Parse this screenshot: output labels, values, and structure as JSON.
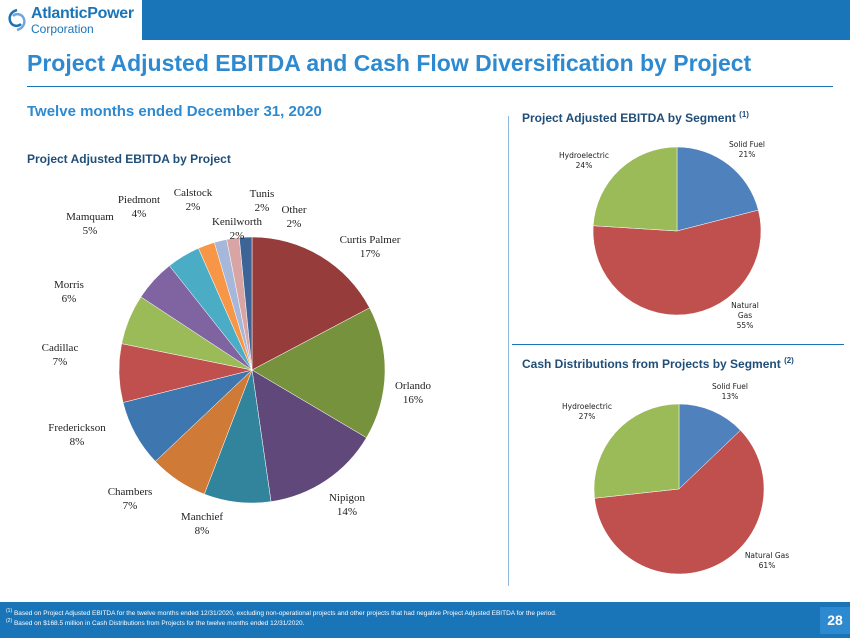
{
  "header": {
    "logo_line1": "AtlanticPower",
    "logo_line2": "Corporation",
    "title": "Project Adjusted EBITDA and Cash Flow Diversification by Project",
    "subtitle": "Twelve months ended December 31, 2020"
  },
  "colors": {
    "brand_blue": "#1a74b8",
    "title_blue": "#2d8ad0",
    "heading_navy": "#1f4e79"
  },
  "sections": {
    "by_project": "Project Adjusted EBITDA by Project",
    "by_segment": "Project Adjusted EBITDA by Segment",
    "by_segment_note": "(1)",
    "cash_distributions": "Cash Distributions from Projects by Segment",
    "cash_distributions_note": "(2)"
  },
  "chart_data": [
    {
      "type": "pie",
      "title": "Project Adjusted EBITDA by Project",
      "categories": [
        "Curtis Palmer",
        "Orlando",
        "Nipigon",
        "Manchief",
        "Chambers",
        "Frederickson",
        "Cadillac",
        "Morris",
        "Mamquam",
        "Piedmont",
        "Calstock",
        "Kenilworth",
        "Tunis",
        "Other"
      ],
      "labels": [
        "17%",
        "16%",
        "14%",
        "8%",
        "7%",
        "8%",
        "7%",
        "6%",
        "5%",
        "4%",
        "2%",
        "2%",
        "2%",
        "2%"
      ],
      "values": [
        17,
        16,
        14,
        8,
        7,
        8,
        7,
        6,
        5,
        4,
        2,
        1.5,
        1.5,
        1.5
      ],
      "colors": [
        "#963c3a",
        "#76923c",
        "#60497a",
        "#31849b",
        "#d07a37",
        "#3e76b0",
        "#c0504d",
        "#9bbb59",
        "#8064a2",
        "#4bacc6",
        "#f79646",
        "#a6b7d9",
        "#d9a5a4",
        "#3d6496"
      ],
      "start_category": "Curtis Palmer"
    },
    {
      "type": "pie",
      "title": "Project Adjusted EBITDA by Segment",
      "categories": [
        "Solid Fuel",
        "Natural Gas",
        "Hydroelectric"
      ],
      "display_labels": [
        "Solid Fuel",
        "Natural Gas",
        "Hydroelectric"
      ],
      "values": [
        21,
        55,
        24
      ],
      "labels": [
        "21%",
        "55%",
        "24%"
      ],
      "colors": [
        "#4f81bd",
        "#c0504d",
        "#9bbb59"
      ]
    },
    {
      "type": "pie",
      "title": "Cash Distributions from Projects by Segment",
      "categories": [
        "Solid Fuel",
        "Natural Gas",
        "Hydroelectric"
      ],
      "display_labels": [
        "Solid Fuel",
        "Natural Gas",
        "Hydroelectric"
      ],
      "values": [
        13,
        61,
        27
      ],
      "labels": [
        "13%",
        "61%",
        "27%"
      ],
      "colors": [
        "#4f81bd",
        "#c0504d",
        "#9bbb59"
      ]
    }
  ],
  "footnotes": {
    "note1_marker": "(1)",
    "note1_text": "Based on Project Adjusted EBITDA for the twelve months ended 12/31/2020, excluding non-operational projects and other projects that had negative Project Adjusted EBITDA for the period.",
    "note2_marker": "(2)",
    "note2_text": "Based on $168.5 million in Cash Distributions from Projects for the twelve months ended 12/31/2020."
  },
  "page_number": "28"
}
